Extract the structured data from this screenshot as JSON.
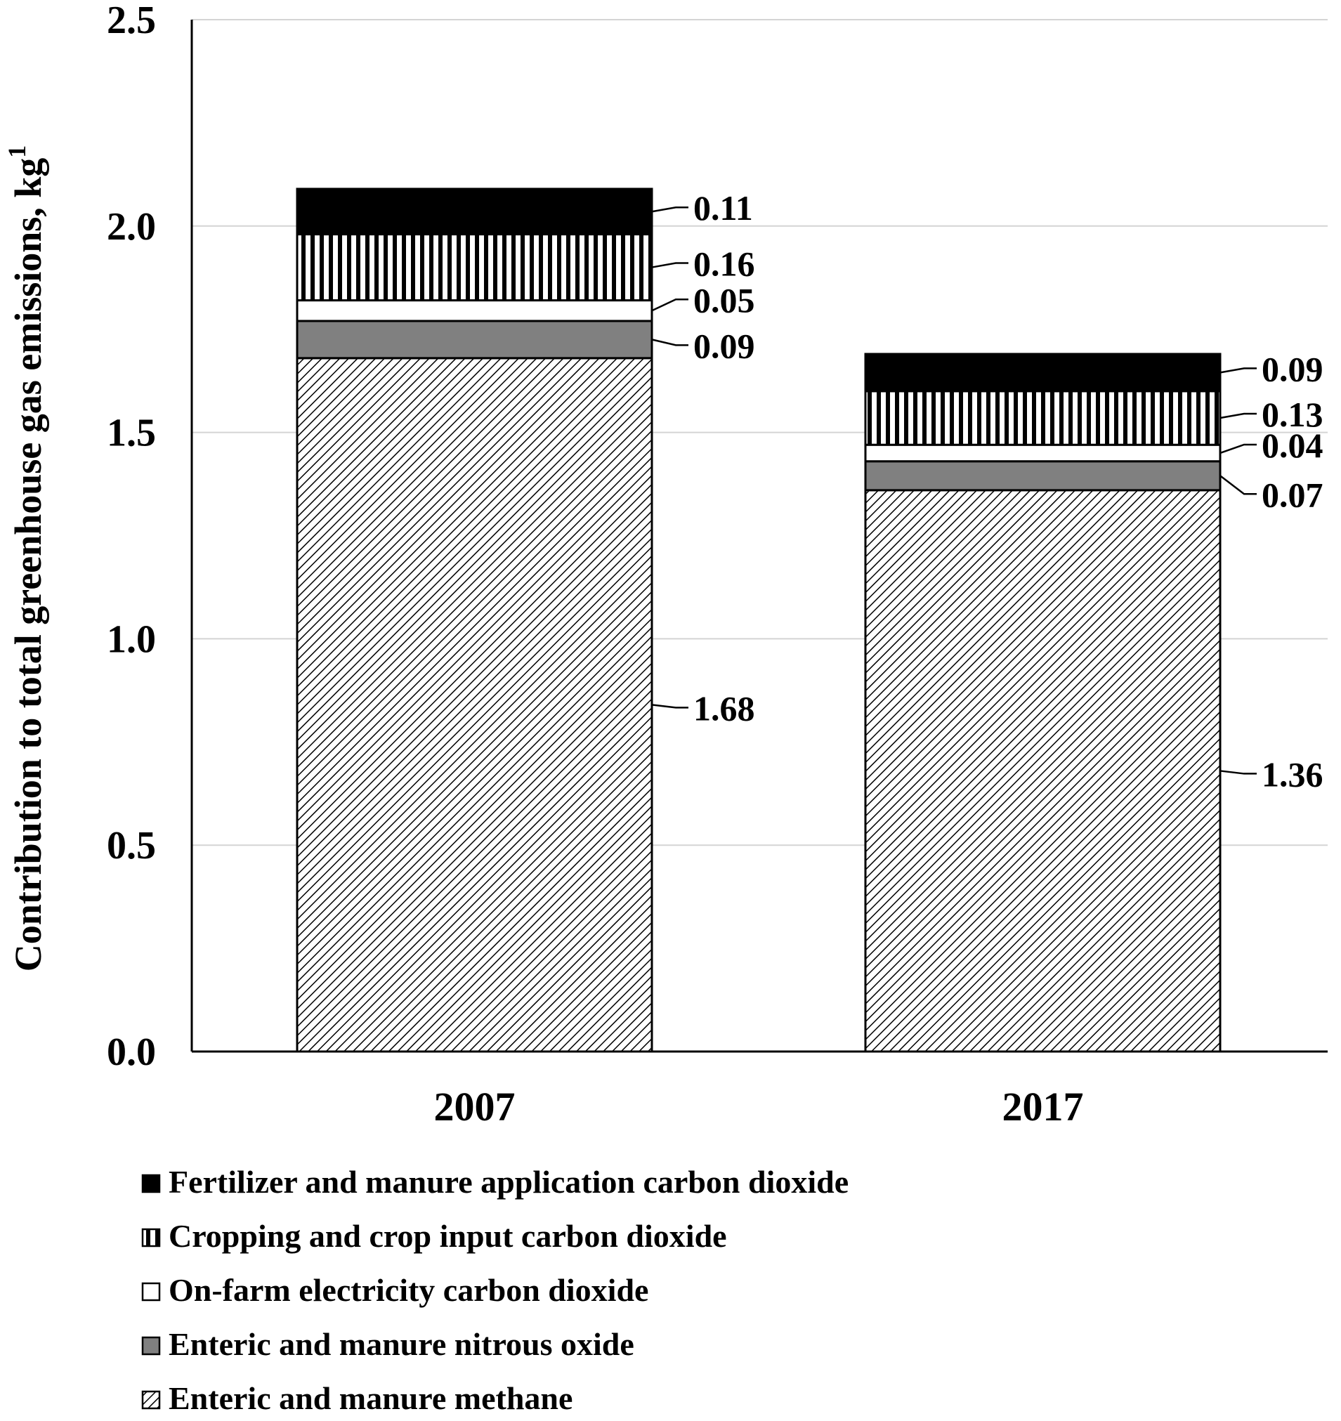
{
  "chart_data": {
    "type": "bar",
    "stacked": true,
    "categories": [
      "2007",
      "2017"
    ],
    "ylabel": "Contribution to total greenhouse gas emissions, kg",
    "ylabel_superscript": "1",
    "ylim": [
      0,
      2.5
    ],
    "yticks": [
      0.0,
      0.5,
      1.0,
      1.5,
      2.0,
      2.5
    ],
    "ytick_labels": [
      "0.0",
      "0.5",
      "1.0",
      "1.5",
      "2.0",
      "2.5"
    ],
    "grid": "horizontal",
    "legend_position": "bottom",
    "series": [
      {
        "name": "Enteric and manure methane",
        "values": [
          1.68,
          1.36
        ],
        "labels": [
          "1.68",
          "1.36"
        ],
        "pattern": "diagonal-hatch"
      },
      {
        "name": "Enteric and manure nitrous oxide",
        "values": [
          0.09,
          0.07
        ],
        "labels": [
          "0.09",
          "0.07"
        ],
        "color": "#808080"
      },
      {
        "name": "On-farm electricity carbon dioxide",
        "values": [
          0.05,
          0.04
        ],
        "labels": [
          "0.05",
          "0.04"
        ],
        "color": "#ffffff"
      },
      {
        "name": "Cropping and crop input carbon dioxide",
        "values": [
          0.16,
          0.13
        ],
        "labels": [
          "0.16",
          "0.13"
        ],
        "pattern": "vertical-stripes"
      },
      {
        "name": "Fertilizer and manure application carbon dioxide",
        "values": [
          0.11,
          0.09
        ],
        "labels": [
          "0.11",
          "0.09"
        ],
        "color": "#000000"
      }
    ],
    "legend_order": [
      4,
      3,
      2,
      1,
      0
    ]
  }
}
